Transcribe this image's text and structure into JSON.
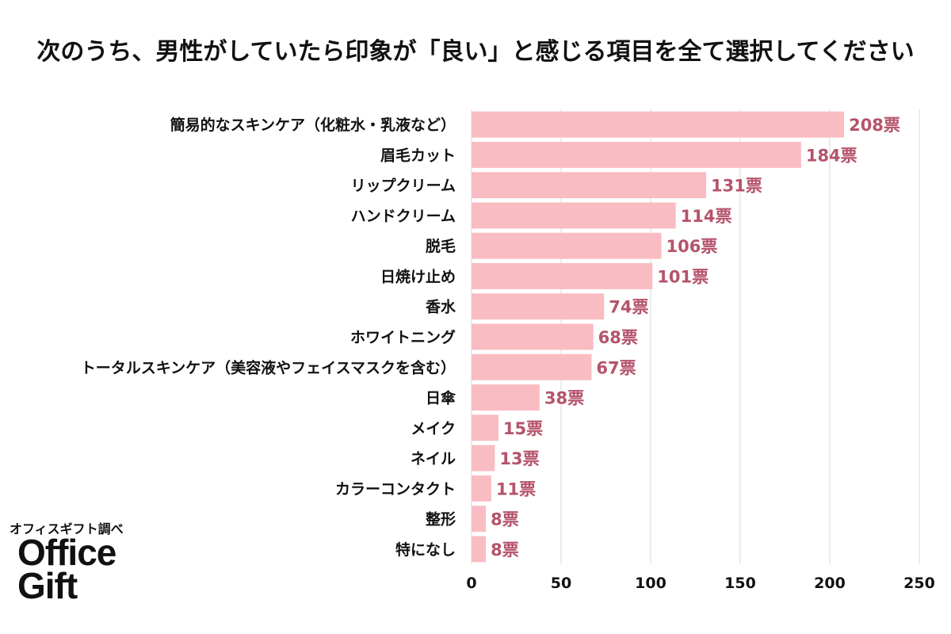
{
  "title": "次のうち、男性がしていたら印象が「良い」と感じる項目を全て選択してください",
  "source": "オフィスギフト調べ",
  "brand": {
    "line1": "Office",
    "line2": "Gift"
  },
  "colors": {
    "bar": "#f9bcc2",
    "value_label": "#b5536b",
    "grid": "#d9d9d9",
    "text": "#111111"
  },
  "chart_data": {
    "type": "bar",
    "orientation": "horizontal",
    "title": "次のうち、男性がしていたら印象が「良い」と感じる項目を全て選択してください",
    "categories": [
      "簡易的なスキンケア（化粧水・乳液など）",
      "眉毛カット",
      "リップクリーム",
      "ハンドクリーム",
      "脱毛",
      "日焼け止め",
      "香水",
      "ホワイトニング",
      "トータルスキンケア（美容液やフェイスマスクを含む）",
      "日傘",
      "メイク",
      "ネイル",
      "カラーコンタクト",
      "整形",
      "特になし"
    ],
    "values": [
      208,
      184,
      131,
      114,
      106,
      101,
      74,
      68,
      67,
      38,
      15,
      13,
      11,
      8,
      8
    ],
    "value_suffix": "票",
    "xlim": [
      0,
      250
    ],
    "xticks": [
      0,
      50,
      100,
      150,
      200,
      250
    ],
    "xlabel": "",
    "ylabel": "",
    "grid": true,
    "legend": "none"
  }
}
